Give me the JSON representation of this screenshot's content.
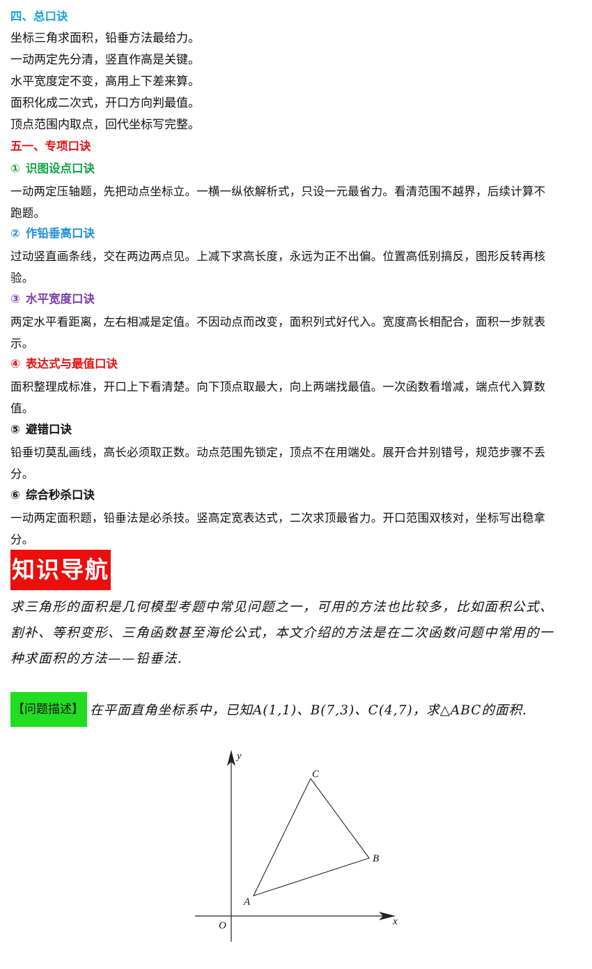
{
  "colors": {
    "section_cyan": "#1aa3d9",
    "section_red": "#e31414",
    "item_green": "#16a34a",
    "item_blue": "#1f8fd6",
    "item_purple": "#7a3fa8",
    "item_red": "#e31414",
    "item_black": "#111111",
    "nav_badge_bg": "#ec0d0d",
    "tag_bg": "#22dd22"
  },
  "section4": {
    "title": "四、总口诀",
    "lines": [
      "坐标三角求面积，铅垂方法最给力。",
      "一动两定先分清，竖直作高是关键。",
      "水平宽度定不变，高用上下差来算。",
      "面积化成二次式，开口方向判最值。",
      "顶点范围内取点，回代坐标写完整。"
    ]
  },
  "section5": {
    "title": "五一、专项口诀",
    "items": [
      {
        "num": "①",
        "title": "识图设点口诀",
        "l1": "一动两定压轴题，先把动点坐标立。一横一纵依解析式，只设一元最省力。看清范围不越界，后续计算不",
        "l2": "跑题。"
      },
      {
        "num": "②",
        "title": "作铅垂高口诀",
        "l1": "过动竖直画条线，交在两边两点见。上减下求高长度，永远为正不出偏。位置高低别搞反，图形反转再核",
        "l2": "验。"
      },
      {
        "num": "③",
        "title": "水平宽度口诀",
        "l1": "两定水平看距离，左右相减是定值。不因动点而改变，面积列式好代入。宽度高长相配合，面积一步就表",
        "l2": "示。"
      },
      {
        "num": "④",
        "title": "表达式与最值口诀",
        "l1": "面积整理成标准，开口上下看清楚。向下顶点取最大，向上两端找最值。一次函数看增减，端点代入算数",
        "l2": "值。"
      },
      {
        "num": "⑤",
        "title": "避错口诀",
        "l1": "铅垂切莫乱画线，高长必须取正数。动点范围先锁定，顶点不在用端处。展开合并别错号，规范步骤不丢",
        "l2": "分。"
      },
      {
        "num": "⑥",
        "title": "综合秒杀口诀",
        "l1": "一动两定面积题，铅垂法是必杀技。竖高定宽表达式，二次求顶最省力。开口范围双核对，坐标写出稳拿",
        "l2": "分。"
      }
    ]
  },
  "nav": {
    "label": "知识导航"
  },
  "intro": {
    "l1": "求三角形的面积是几何模型考题中常见问题之一，可用的方法也比较多，比如面积公式、",
    "l2": "割补、等积变形、三角函数甚至海伦公式，本文介绍的方法是在二次函数问题中常用的一",
    "l3": "种求面积的方法——铅垂法."
  },
  "question": {
    "tag": "【问题描述】",
    "text": "在平面直角坐标系中，已知A(1,1)、B(7,3)、C(4,7)，求△ABC的面积."
  },
  "figure": {
    "labels": {
      "A": "A",
      "B": "B",
      "C": "C",
      "O": "O",
      "x": "x",
      "y": "y"
    }
  }
}
